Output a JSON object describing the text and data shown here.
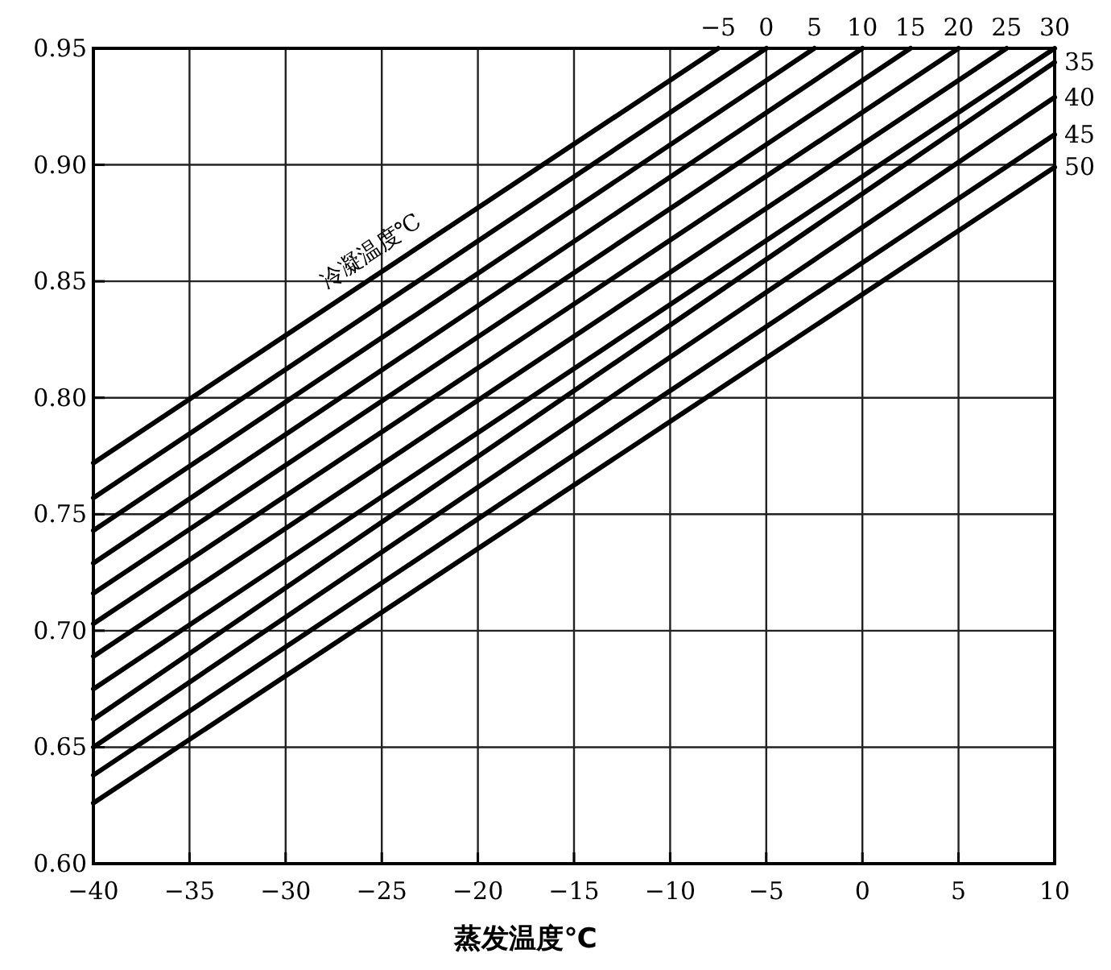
{
  "chart_data": {
    "type": "line",
    "xlabel": "蒸发温度℃",
    "annotations": [
      "冷凝温度℃"
    ],
    "xlim": [
      -40,
      10
    ],
    "xticks": [
      -40,
      -35,
      -30,
      -25,
      -20,
      -15,
      -10,
      -5,
      0,
      5,
      10
    ],
    "ylim": [
      0.6,
      0.95
    ],
    "yticks": [
      {
        "value": 0.6,
        "label": "0.60"
      },
      {
        "value": 0.65,
        "label": "0.65"
      },
      {
        "value": 0.7,
        "label": "0.70"
      },
      {
        "value": 0.75,
        "label": "0.75"
      },
      {
        "value": 0.8,
        "label": "0.80"
      },
      {
        "value": 0.85,
        "label": "0.85"
      },
      {
        "value": 0.9,
        "label": "0.90"
      },
      {
        "value": 0.95,
        "label": "0.95"
      }
    ],
    "grid": true,
    "series": [
      {
        "name": "−5",
        "color": "#000000",
        "x": [
          -40,
          -7.5
        ],
        "values": [
          0.772,
          0.95
        ]
      },
      {
        "name": "0",
        "color": "#000000",
        "x": [
          -40,
          -5
        ],
        "values": [
          0.757,
          0.95
        ]
      },
      {
        "name": "5",
        "color": "#000000",
        "x": [
          -40,
          -2.5
        ],
        "values": [
          0.743,
          0.95
        ]
      },
      {
        "name": "10",
        "color": "#000000",
        "x": [
          -40,
          0
        ],
        "values": [
          0.729,
          0.95
        ]
      },
      {
        "name": "15",
        "color": "#000000",
        "x": [
          -40,
          2.5
        ],
        "values": [
          0.716,
          0.95
        ]
      },
      {
        "name": "20",
        "color": "#000000",
        "x": [
          -40,
          5
        ],
        "values": [
          0.703,
          0.95
        ]
      },
      {
        "name": "25",
        "color": "#000000",
        "x": [
          -40,
          7.5
        ],
        "values": [
          0.689,
          0.95
        ]
      },
      {
        "name": "30",
        "color": "#000000",
        "x": [
          -40,
          10
        ],
        "values": [
          0.675,
          0.95
        ]
      },
      {
        "name": "35",
        "color": "#000000",
        "x": [
          -40,
          10
        ],
        "values": [
          0.662,
          0.944
        ]
      },
      {
        "name": "40",
        "color": "#000000",
        "x": [
          -40,
          10
        ],
        "values": [
          0.65,
          0.929
        ]
      },
      {
        "name": "45",
        "color": "#000000",
        "x": [
          -40,
          10
        ],
        "values": [
          0.638,
          0.913
        ]
      },
      {
        "name": "50",
        "color": "#000000",
        "x": [
          -40,
          10
        ],
        "values": [
          0.626,
          0.899
        ]
      }
    ]
  }
}
